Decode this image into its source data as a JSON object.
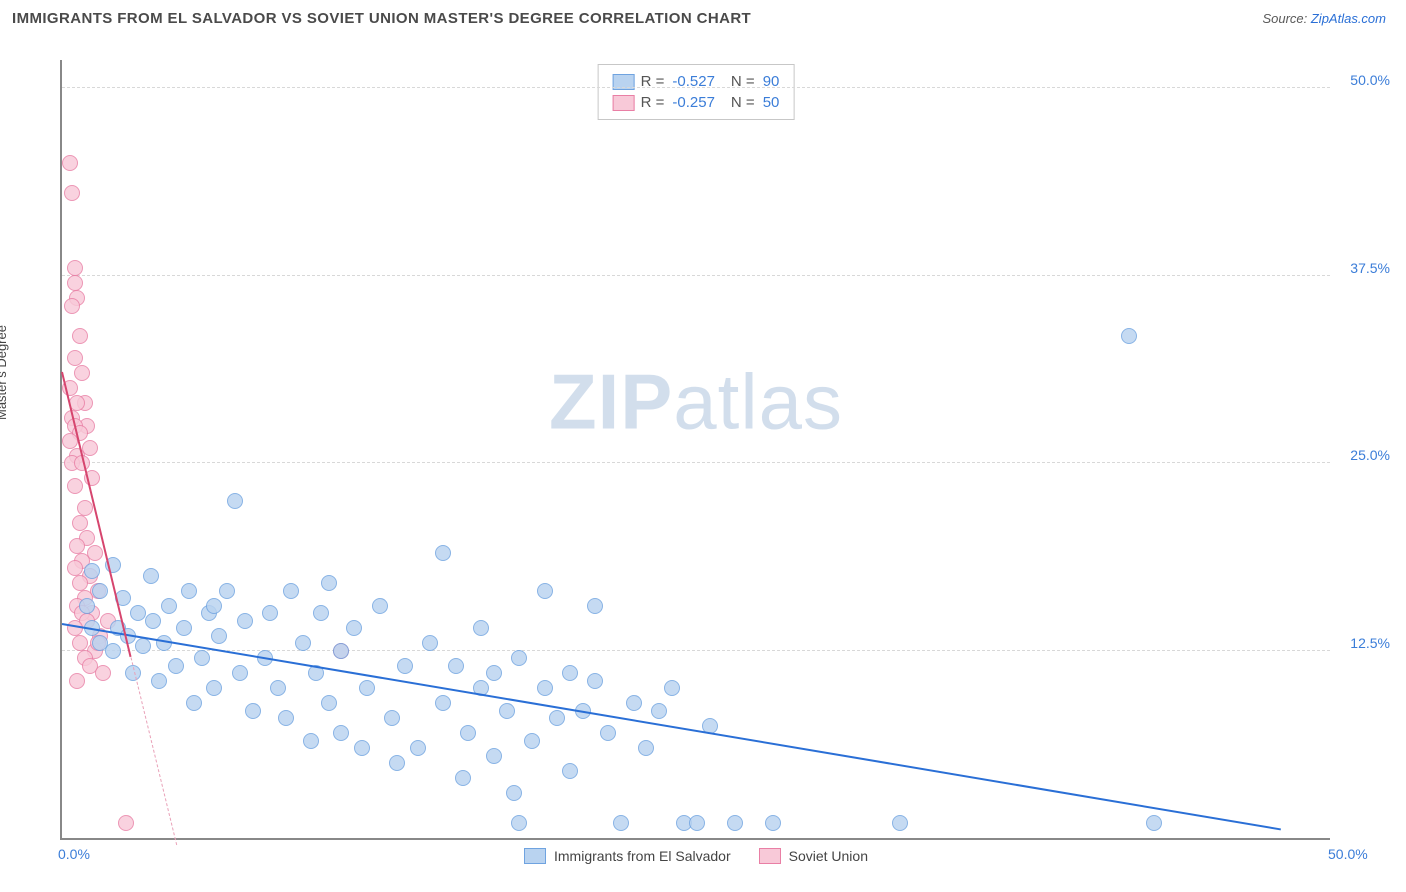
{
  "header": {
    "title": "IMMIGRANTS FROM EL SALVADOR VS SOVIET UNION MASTER'S DEGREE CORRELATION CHART",
    "source_prefix": "Source: ",
    "source_link": "ZipAtlas.com"
  },
  "watermark": {
    "zip": "ZIP",
    "atlas": "atlas"
  },
  "chart": {
    "type": "scatter",
    "xlim": [
      0,
      50
    ],
    "ylim": [
      0,
      52
    ],
    "yticks": [
      12.5,
      25.0,
      37.5,
      50.0
    ],
    "ytick_labels": [
      "12.5%",
      "25.0%",
      "37.5%",
      "50.0%"
    ],
    "xticks": [
      0,
      50
    ],
    "xtick_labels": [
      "0.0%",
      "50.0%"
    ],
    "ylabel": "Master's Degree",
    "background_color": "#ffffff",
    "grid_color": "#d8d8d8",
    "marker_radius": 8,
    "marker_stroke_width": 1.2,
    "series": [
      {
        "key": "el_salvador",
        "label": "Immigrants from El Salvador",
        "R": "-0.527",
        "N": "90",
        "fill": "#b9d3f0",
        "stroke": "#6fa3e0",
        "trend": {
          "x1": 0,
          "y1": 14.2,
          "x2": 48,
          "y2": 0.5,
          "color": "#2a6fd6",
          "width": 2.5,
          "dash": "solid"
        },
        "trend_ext": null,
        "points": [
          [
            1.0,
            15.5
          ],
          [
            1.2,
            17.8
          ],
          [
            1.2,
            14.0
          ],
          [
            1.5,
            13.0
          ],
          [
            2.0,
            18.2
          ],
          [
            2.0,
            12.5
          ],
          [
            2.2,
            14.0
          ],
          [
            2.4,
            16.0
          ],
          [
            2.8,
            11.0
          ],
          [
            3.0,
            15.0
          ],
          [
            3.2,
            12.8
          ],
          [
            3.5,
            17.5
          ],
          [
            3.8,
            10.5
          ],
          [
            4.0,
            13.0
          ],
          [
            4.2,
            15.5
          ],
          [
            4.5,
            11.5
          ],
          [
            4.8,
            14.0
          ],
          [
            5.0,
            16.5
          ],
          [
            5.2,
            9.0
          ],
          [
            5.5,
            12.0
          ],
          [
            5.8,
            15.0
          ],
          [
            6.0,
            10.0
          ],
          [
            6.2,
            13.5
          ],
          [
            6.5,
            16.5
          ],
          [
            6.8,
            22.5
          ],
          [
            7.0,
            11.0
          ],
          [
            7.2,
            14.5
          ],
          [
            7.5,
            8.5
          ],
          [
            8.0,
            12.0
          ],
          [
            8.2,
            15.0
          ],
          [
            8.5,
            10.0
          ],
          [
            9.0,
            16.5
          ],
          [
            9.5,
            13.0
          ],
          [
            9.8,
            6.5
          ],
          [
            10.0,
            11.0
          ],
          [
            10.2,
            15.0
          ],
          [
            10.5,
            9.0
          ],
          [
            10.5,
            17.0
          ],
          [
            11.0,
            12.5
          ],
          [
            11.0,
            7.0
          ],
          [
            11.5,
            14.0
          ],
          [
            12.0,
            10.0
          ],
          [
            12.5,
            15.5
          ],
          [
            13.0,
            8.0
          ],
          [
            13.5,
            11.5
          ],
          [
            14.0,
            6.0
          ],
          [
            14.5,
            13.0
          ],
          [
            15.0,
            9.0
          ],
          [
            15.0,
            19.0
          ],
          [
            15.5,
            11.5
          ],
          [
            16.0,
            7.0
          ],
          [
            16.5,
            14.0
          ],
          [
            16.5,
            10.0
          ],
          [
            17.0,
            11.0
          ],
          [
            17.0,
            5.5
          ],
          [
            17.5,
            8.5
          ],
          [
            18.0,
            12.0
          ],
          [
            18.0,
            1.0
          ],
          [
            18.5,
            6.5
          ],
          [
            19.0,
            10.0
          ],
          [
            19.0,
            16.5
          ],
          [
            19.5,
            8.0
          ],
          [
            20.0,
            4.5
          ],
          [
            20.0,
            11.0
          ],
          [
            20.5,
            8.5
          ],
          [
            21.0,
            10.5
          ],
          [
            21.0,
            15.5
          ],
          [
            21.5,
            7.0
          ],
          [
            22.0,
            1.0
          ],
          [
            22.5,
            9.0
          ],
          [
            23.0,
            6.0
          ],
          [
            23.5,
            8.5
          ],
          [
            24.0,
            10.0
          ],
          [
            24.5,
            1.0
          ],
          [
            25.0,
            1.0
          ],
          [
            25.5,
            7.5
          ],
          [
            26.5,
            1.0
          ],
          [
            28.0,
            1.0
          ],
          [
            33.0,
            1.0
          ],
          [
            42.0,
            33.5
          ],
          [
            43.0,
            1.0
          ],
          [
            1.5,
            16.5
          ],
          [
            2.6,
            13.5
          ],
          [
            3.6,
            14.5
          ],
          [
            6.0,
            15.5
          ],
          [
            8.8,
            8.0
          ],
          [
            11.8,
            6.0
          ],
          [
            13.2,
            5.0
          ],
          [
            15.8,
            4.0
          ],
          [
            17.8,
            3.0
          ]
        ]
      },
      {
        "key": "soviet_union",
        "label": "Soviet Union",
        "R": "-0.257",
        "N": "50",
        "fill": "#f8c9d8",
        "stroke": "#e97fa5",
        "trend": {
          "x1": 0,
          "y1": 31.0,
          "x2": 2.7,
          "y2": 12.0,
          "color": "#d6456e",
          "width": 2.2,
          "dash": "solid"
        },
        "trend_ext": {
          "x1": 2.7,
          "y1": 12.0,
          "x2": 4.5,
          "y2": -0.5,
          "color": "#e9a1b8",
          "width": 1.2,
          "dash": "dashed"
        },
        "points": [
          [
            0.3,
            45.0
          ],
          [
            0.4,
            43.0
          ],
          [
            0.5,
            38.0
          ],
          [
            0.5,
            37.0
          ],
          [
            0.6,
            36.0
          ],
          [
            0.4,
            35.5
          ],
          [
            0.7,
            33.5
          ],
          [
            0.5,
            32.0
          ],
          [
            0.8,
            31.0
          ],
          [
            0.3,
            30.0
          ],
          [
            0.9,
            29.0
          ],
          [
            0.6,
            29.0
          ],
          [
            0.4,
            28.0
          ],
          [
            1.0,
            27.5
          ],
          [
            0.5,
            27.5
          ],
          [
            0.7,
            27.0
          ],
          [
            0.3,
            26.5
          ],
          [
            1.1,
            26.0
          ],
          [
            0.6,
            25.5
          ],
          [
            0.4,
            25.0
          ],
          [
            0.8,
            25.0
          ],
          [
            1.2,
            24.0
          ],
          [
            0.5,
            23.5
          ],
          [
            0.9,
            22.0
          ],
          [
            0.7,
            21.0
          ],
          [
            1.0,
            20.0
          ],
          [
            0.6,
            19.5
          ],
          [
            1.3,
            19.0
          ],
          [
            0.8,
            18.5
          ],
          [
            0.5,
            18.0
          ],
          [
            1.1,
            17.5
          ],
          [
            0.7,
            17.0
          ],
          [
            1.4,
            16.5
          ],
          [
            0.9,
            16.0
          ],
          [
            0.6,
            15.5
          ],
          [
            1.2,
            15.0
          ],
          [
            0.8,
            15.0
          ],
          [
            1.0,
            14.5
          ],
          [
            0.5,
            14.0
          ],
          [
            1.5,
            13.5
          ],
          [
            0.7,
            13.0
          ],
          [
            1.3,
            12.5
          ],
          [
            0.9,
            12.0
          ],
          [
            1.1,
            11.5
          ],
          [
            1.6,
            11.0
          ],
          [
            0.6,
            10.5
          ],
          [
            1.4,
            13.0
          ],
          [
            1.8,
            14.5
          ],
          [
            2.5,
            1.0
          ],
          [
            11.0,
            12.5
          ]
        ]
      }
    ],
    "legend_bottom": [
      {
        "label": "Immigrants from El Salvador",
        "fill": "#b9d3f0",
        "stroke": "#6fa3e0"
      },
      {
        "label": "Soviet Union",
        "fill": "#f8c9d8",
        "stroke": "#e97fa5"
      }
    ]
  }
}
